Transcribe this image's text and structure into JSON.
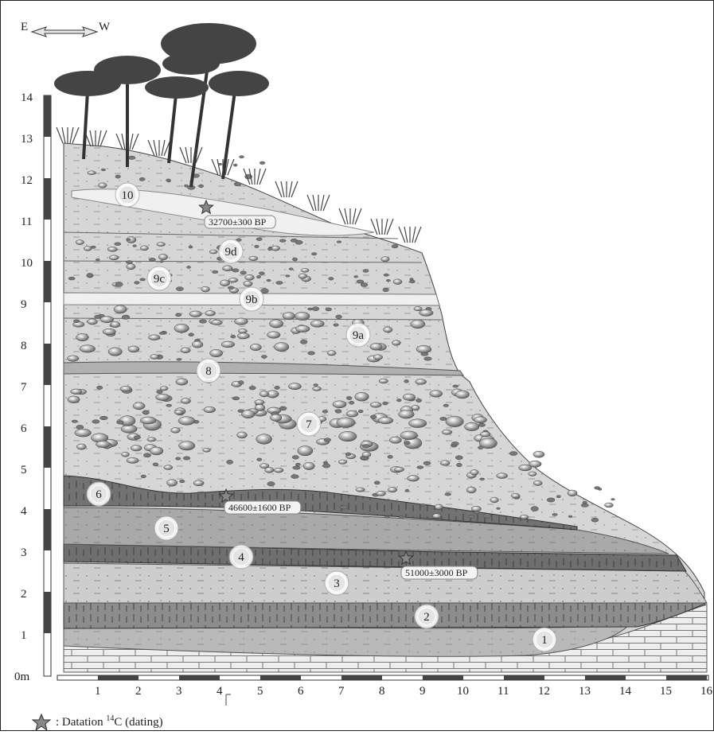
{
  "orientation": {
    "left": "E",
    "right": "W"
  },
  "y_axis": {
    "unit_label": "0m",
    "ticks": [
      "1",
      "2",
      "3",
      "4",
      "5",
      "6",
      "7",
      "8",
      "9",
      "10",
      "11",
      "12",
      "13",
      "14"
    ]
  },
  "x_axis": {
    "ticks": [
      "1",
      "2",
      "3",
      "4",
      "5",
      "6",
      "7",
      "8",
      "9",
      "10",
      "11",
      "12",
      "13",
      "14",
      "15",
      "16"
    ]
  },
  "layers": [
    "1",
    "2",
    "3",
    "4",
    "5",
    "6",
    "7",
    "8",
    "9a",
    "9b",
    "9c",
    "9d",
    "10"
  ],
  "dates": [
    {
      "label": "32700±300 BP",
      "layer": "10"
    },
    {
      "label": "46600±1600 BP",
      "layer": "6"
    },
    {
      "label": "51000±3000 BP",
      "layer": "4"
    }
  ],
  "legend": {
    "prefix": ": Datation ",
    "super": "14",
    "suffix": "C (dating)"
  },
  "colors": {
    "light_sediment": "#d3d3d3",
    "dark_band": "#7d7d7d",
    "mid_band": "#a9a9a9",
    "bedrock": "#e6e6e6"
  }
}
